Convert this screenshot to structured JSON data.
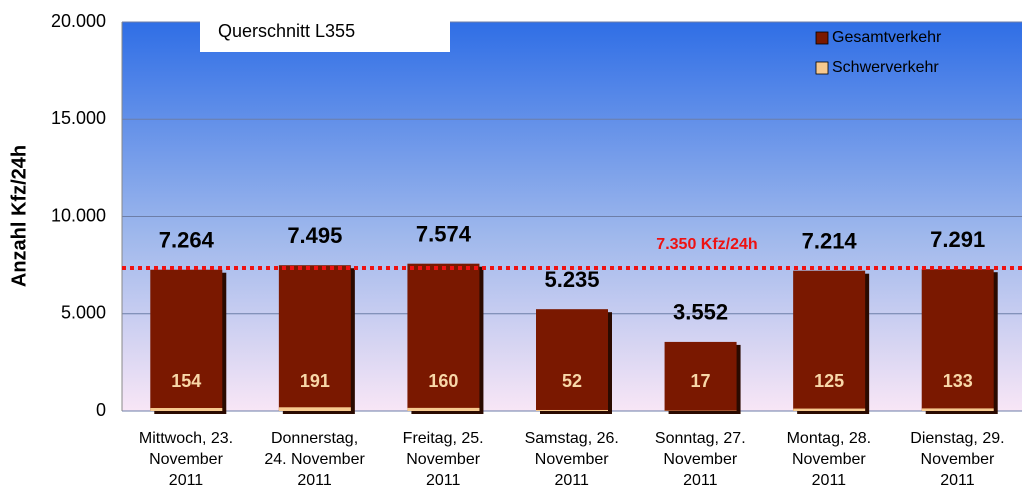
{
  "chart_data": {
    "type": "bar",
    "title": "Querschnitt L355",
    "y_axis_label": "Anzahl Kfz/24h",
    "categories": [
      "Mittwoch, 23.\nNovember\n2011",
      "Donnerstag,\n24. November\n2011",
      "Freitag, 25.\nNovember\n2011",
      "Samstag, 26.\nNovember\n2011",
      "Sonntag, 27.\nNovember\n2011",
      "Montag, 28.\nNovember\n2011",
      "Dienstag, 29.\nNovember\n2011"
    ],
    "series": [
      {
        "name": "Gesamtverkehr",
        "color": "#7a1800",
        "values": [
          7264,
          7495,
          7574,
          5235,
          3552,
          7214,
          7291
        ],
        "value_labels": [
          "7.264",
          "7.495",
          "7.574",
          "5.235",
          "3.552",
          "7.214",
          "7.291"
        ]
      },
      {
        "name": "Schwerverkehr",
        "color": "#f6c98f",
        "values": [
          154,
          191,
          160,
          52,
          17,
          125,
          133
        ]
      }
    ],
    "ylim": [
      0,
      20000
    ],
    "yticks": [
      0,
      {
        "value": 5000,
        "label": "5.000"
      },
      {
        "value": 10000,
        "label": "10.000"
      },
      {
        "value": 15000,
        "label": "15.000"
      },
      {
        "value": 20000,
        "label": "20.000"
      }
    ],
    "grid": true,
    "legend": "top-right",
    "annotations": [
      {
        "value": 7350,
        "label": "7.350 Kfz/24h",
        "color": "#ee1111"
      }
    ]
  }
}
